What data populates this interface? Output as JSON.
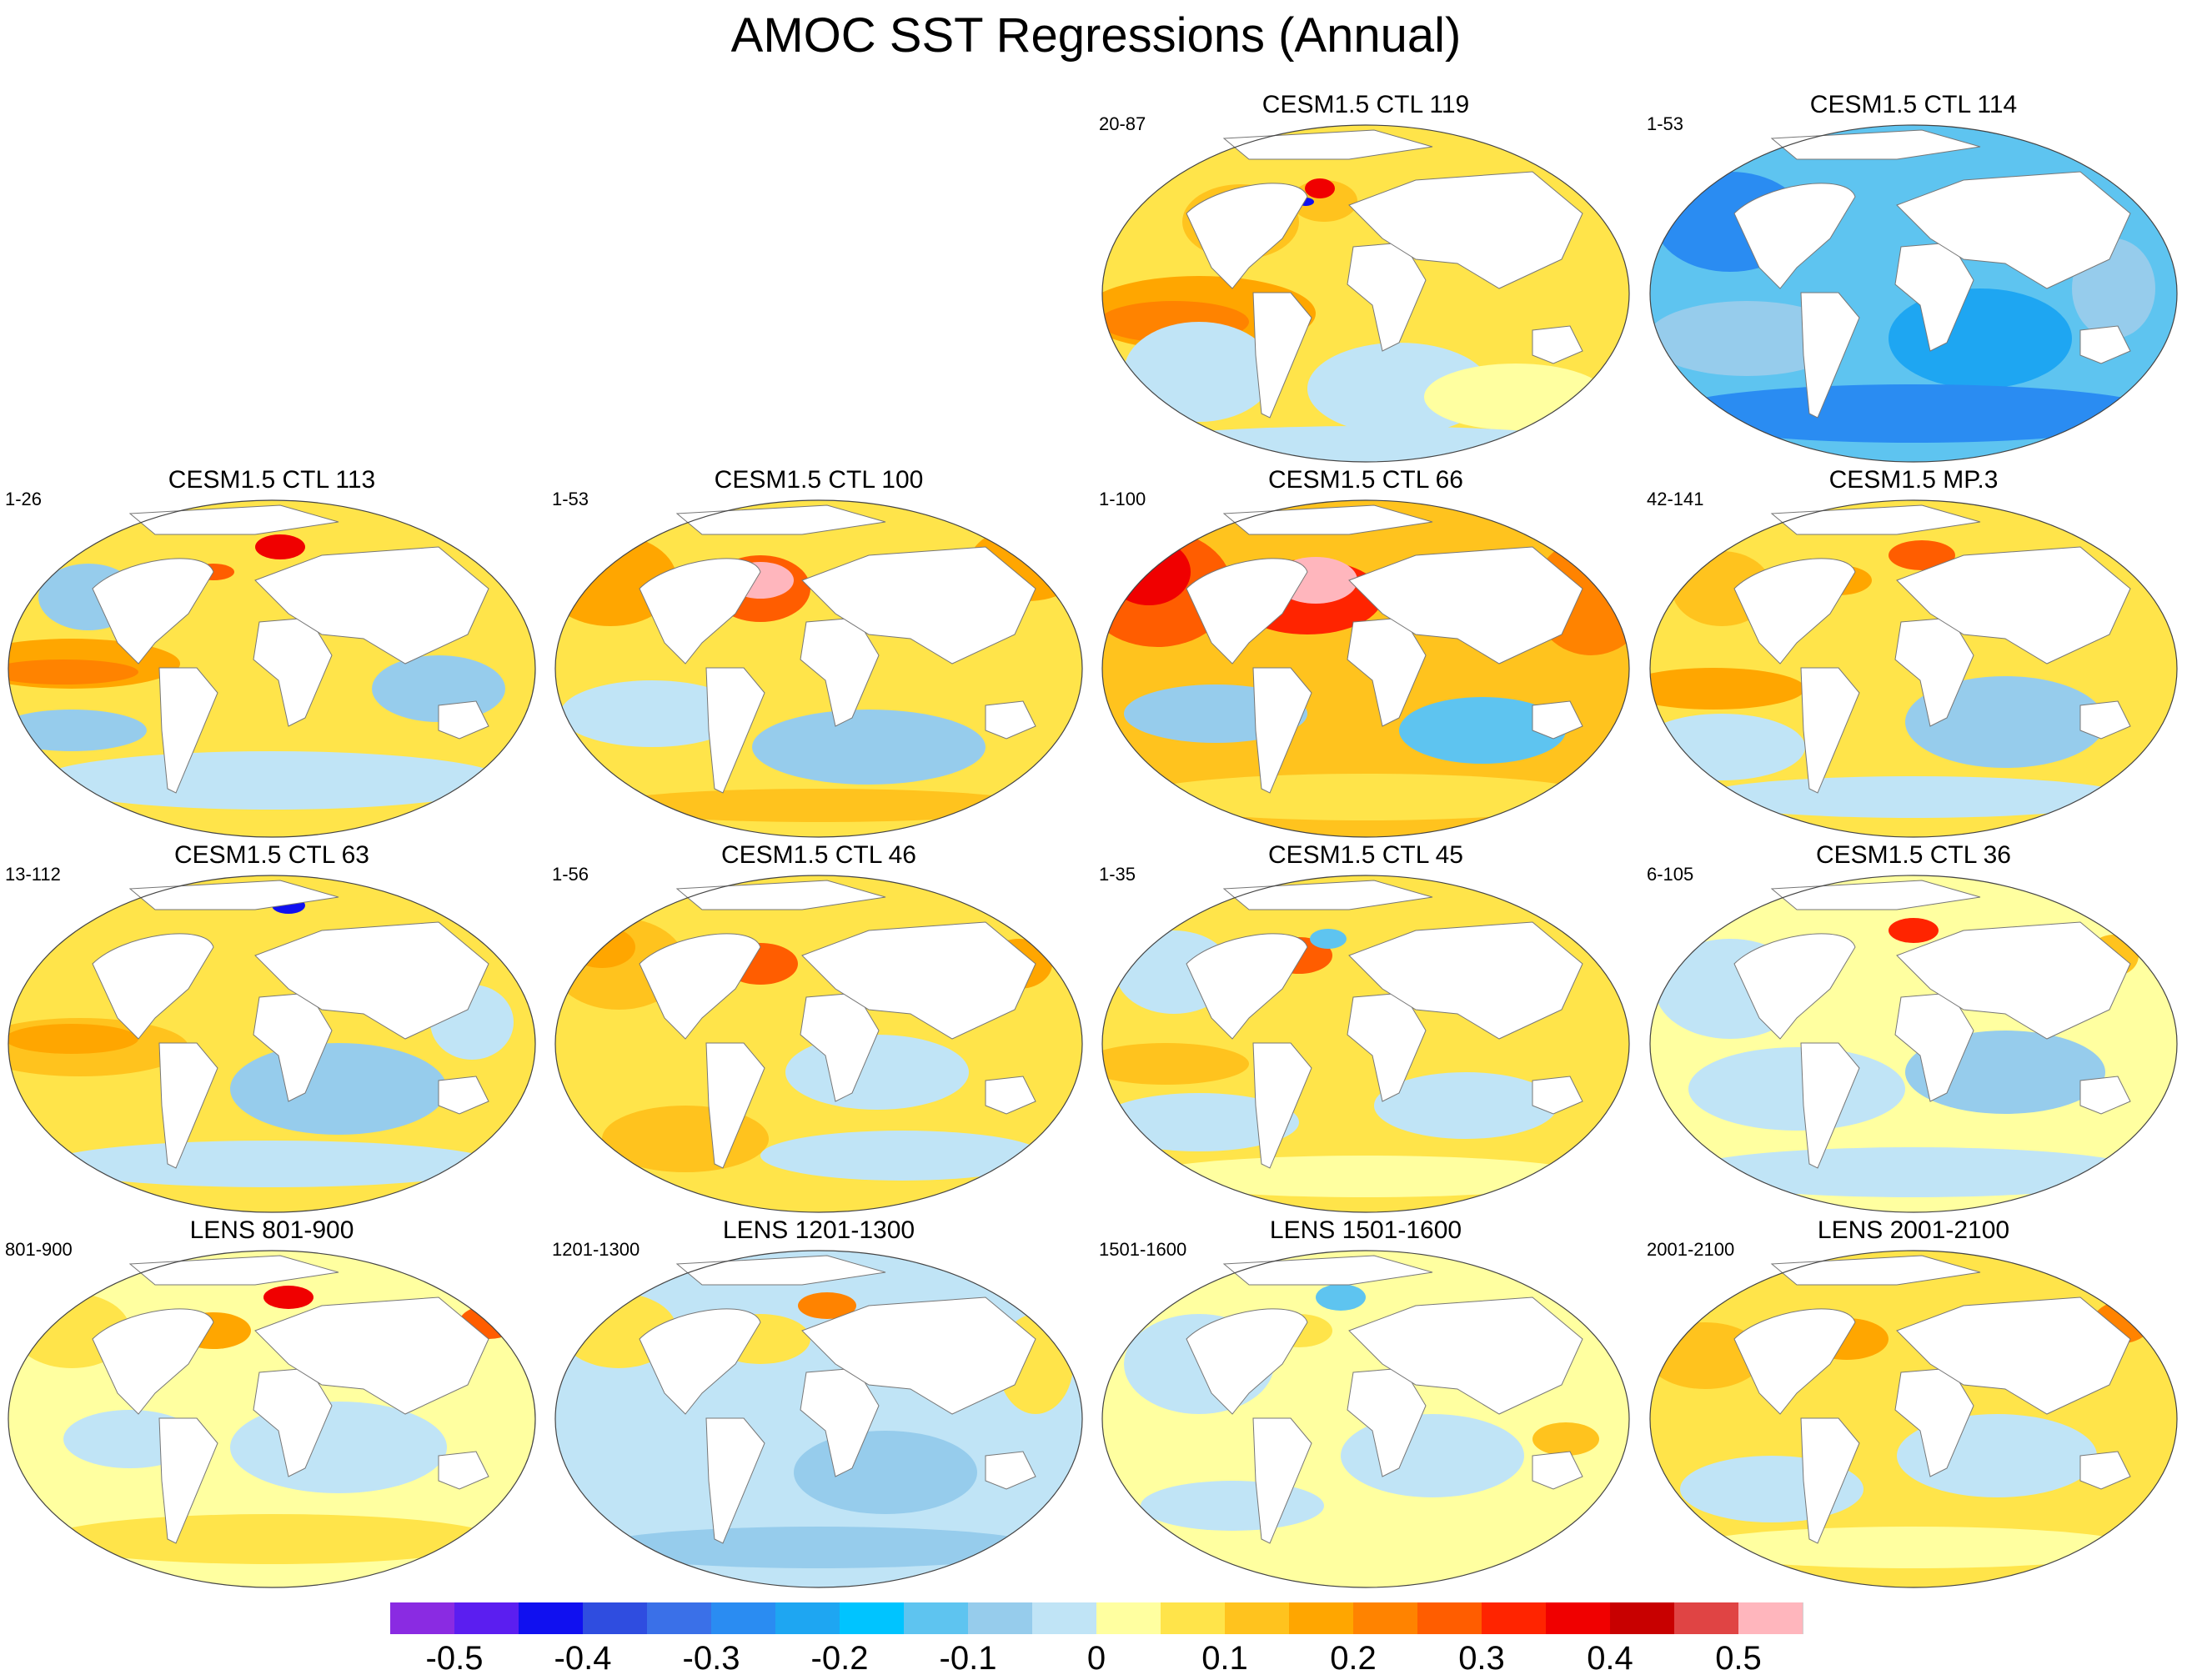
{
  "title": "AMOC SST Regressions (Annual)",
  "colorbar": {
    "colors": [
      "#8a2be2",
      "#5b1ef0",
      "#1010f0",
      "#2f4de0",
      "#3a70e8",
      "#2a8cf2",
      "#1ea6f2",
      "#00c4ff",
      "#5ec4f0",
      "#96ccec",
      "#c0e4f6",
      "#ffffa0",
      "#ffe44a",
      "#ffc31e",
      "#ffa600",
      "#ff8300",
      "#ff5d00",
      "#ff2400",
      "#f00000",
      "#c80000",
      "#e04444",
      "#ffb6bd"
    ],
    "labels": [
      "-0.5",
      "-0.4",
      "-0.3",
      "-0.2",
      "-0.1",
      "0",
      "0.1",
      "0.2",
      "0.3",
      "0.4",
      "0.5"
    ]
  },
  "panels": [
    {
      "title": "CESM1.5 CTL 119",
      "period": "20-87"
    },
    {
      "title": "CESM1.5 CTL 114",
      "period": "1-53"
    },
    {
      "title": "CESM1.5 CTL 113",
      "period": "1-26"
    },
    {
      "title": "CESM1.5 CTL 100",
      "period": "1-53"
    },
    {
      "title": "CESM1.5 CTL 66",
      "period": "1-100"
    },
    {
      "title": "CESM1.5 MP.3",
      "period": "42-141"
    },
    {
      "title": "CESM1.5 CTL 63",
      "period": "13-112"
    },
    {
      "title": "CESM1.5 CTL 46",
      "period": "1-56"
    },
    {
      "title": "CESM1.5 CTL 45",
      "period": "1-35"
    },
    {
      "title": "CESM1.5 CTL 36",
      "period": "6-105"
    },
    {
      "title": "LENS 801-900",
      "period": "801-900"
    },
    {
      "title": "LENS 1201-1300",
      "period": "1201-1300"
    },
    {
      "title": "LENS 1501-1600",
      "period": "1501-1600"
    },
    {
      "title": "LENS 2001-2100",
      "period": "2001-2100"
    }
  ]
}
